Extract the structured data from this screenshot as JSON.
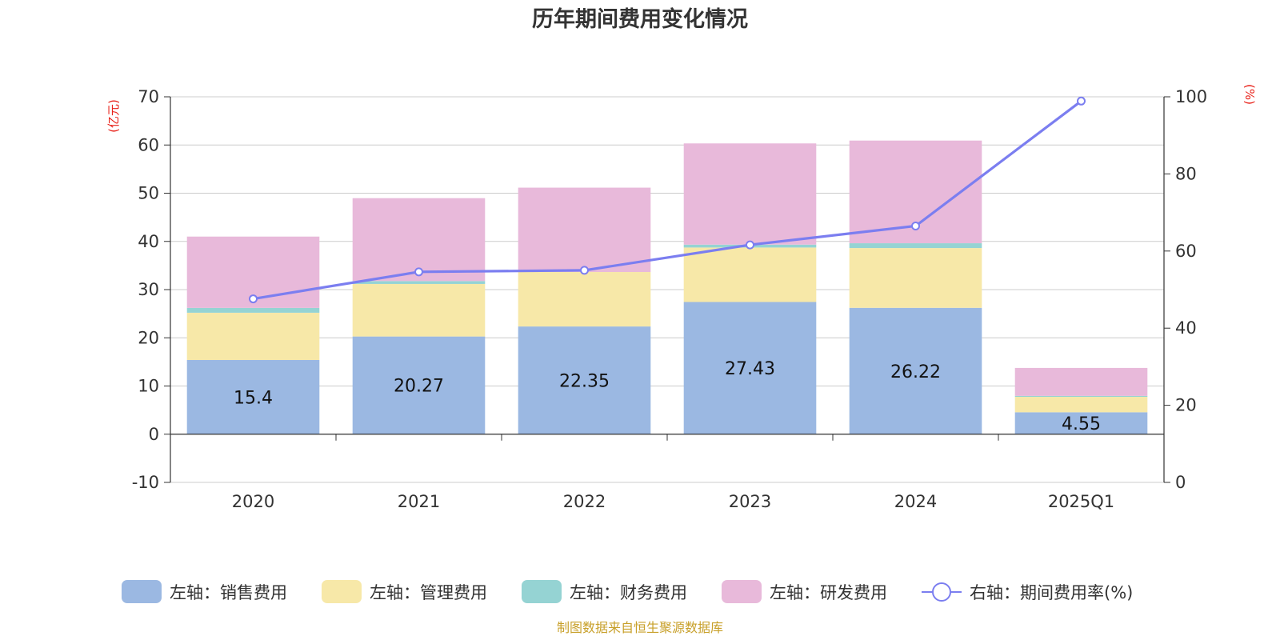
{
  "chart_data": {
    "type": "bar",
    "title": "历年期间费用变化情况",
    "categories": [
      "2020",
      "2021",
      "2022",
      "2023",
      "2024",
      "2025Q1"
    ],
    "stacked": true,
    "left_axis": {
      "unit": "(亿元)",
      "ylim": [
        -10,
        70
      ],
      "ticks": [
        -10,
        0,
        10,
        20,
        30,
        40,
        50,
        60,
        70
      ]
    },
    "right_axis": {
      "unit": "(%)",
      "ylim": [
        0,
        100
      ],
      "ticks": [
        0,
        20,
        40,
        60,
        80,
        100
      ]
    },
    "series": [
      {
        "name": "左轴：销售费用",
        "type": "bar",
        "axis": "left",
        "color": "#9bb8e2",
        "values": [
          15.4,
          20.27,
          22.35,
          27.43,
          26.22,
          4.55
        ],
        "labels": [
          "15.4",
          "20.27",
          "22.35",
          "27.43",
          "26.22",
          "4.55"
        ]
      },
      {
        "name": "左轴：管理费用",
        "type": "bar",
        "axis": "left",
        "color": "#f7e8a8",
        "values": [
          9.8,
          10.9,
          11.3,
          11.3,
          12.4,
          3.2
        ]
      },
      {
        "name": "左轴：财务费用",
        "type": "bar",
        "axis": "left",
        "color": "#95d3d3",
        "values": [
          1.0,
          0.6,
          0.0,
          0.6,
          1.0,
          0.2
        ]
      },
      {
        "name": "左轴：研发费用",
        "type": "bar",
        "axis": "left",
        "color": "#e8b9da",
        "values": [
          14.8,
          17.2,
          17.5,
          21.0,
          21.3,
          5.8
        ]
      },
      {
        "name": "右轴：期间费用率(%)",
        "type": "line",
        "axis": "right",
        "color": "#7b7ef0",
        "values": [
          47.6,
          54.6,
          55.0,
          61.6,
          66.5,
          98.9
        ]
      }
    ],
    "source": "制图数据来自恒生聚源数据库"
  }
}
